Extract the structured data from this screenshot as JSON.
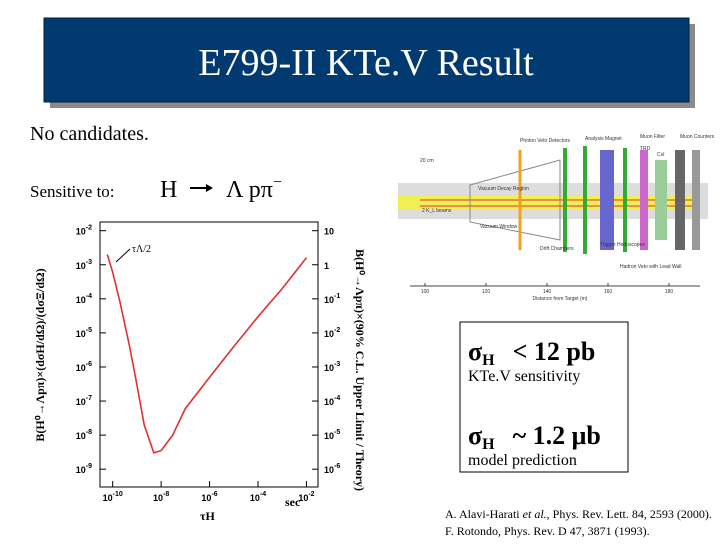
{
  "title": "E799-II KTe.V Result",
  "statement": "No candidates.",
  "sensitive": {
    "label": "Sensitive to:",
    "parent": "H",
    "products": "Λ pπ",
    "charge": "−"
  },
  "results": [
    {
      "symbol": "σ",
      "sub": "H",
      "relation": "< 12 pb",
      "note": "KTe.V sensitivity"
    },
    {
      "symbol": "σ",
      "sub": "H",
      "relation": "~ 1.2 μb",
      "note": "model prediction"
    }
  ],
  "references": [
    {
      "authors": "A. Alavi-Harati ",
      "etal": "et al.",
      "rest": ", Phys. Rev. Lett. 84, 2593 (2000)."
    },
    {
      "authors": "F. Rotondo, Phys. Rev. D 47, 3871 (1993).",
      "etal": "",
      "rest": ""
    }
  ],
  "detector": {
    "labels": [
      "20 cm",
      "Photon Veto Detectors",
      "Analysis Magnet",
      "Muon Filter",
      "Muon Counters",
      "TRD",
      "CsI",
      "Vacuum Decay Region",
      "2 K_L beams",
      "Vacuum Window",
      "Drift Chambers",
      "Trigger Hodoscopes",
      "Hadron Veto with Lead Wall"
    ],
    "xticks": [
      100,
      120,
      140,
      160,
      180
    ],
    "xlabel": "Distance from Target (m)"
  },
  "plot": {
    "type": "line",
    "log": true,
    "xlim": [
      3e-11,
      0.03
    ],
    "ylim": [
      3e-10,
      0.018
    ],
    "y2lim": [
      3e-07,
      18
    ],
    "xticks": [
      {
        "value": 1e-10,
        "label": "10",
        "sup": "-10"
      },
      {
        "value": 1e-08,
        "label": "10",
        "sup": "-8"
      },
      {
        "value": 1e-06,
        "label": "10",
        "sup": "-6"
      },
      {
        "value": 0.0001,
        "label": "10",
        "sup": "-4"
      },
      {
        "value": 0.01,
        "label": "10",
        "sup": "-2"
      }
    ],
    "yticks": [
      {
        "value": 0.01,
        "label": "10",
        "sup": "-2"
      },
      {
        "value": 0.001,
        "label": "10",
        "sup": "-3"
      },
      {
        "value": 0.0001,
        "label": "10",
        "sup": "-4"
      },
      {
        "value": 1e-05,
        "label": "10",
        "sup": "-5"
      },
      {
        "value": 1e-06,
        "label": "10",
        "sup": "-6"
      },
      {
        "value": 1e-07,
        "label": "10",
        "sup": "-7"
      },
      {
        "value": 1e-08,
        "label": "10",
        "sup": "-8"
      },
      {
        "value": 1e-09,
        "label": "10",
        "sup": "-9"
      }
    ],
    "y2ticks": [
      10,
      1,
      {
        "value": 0.1,
        "label": "10",
        "sup": "-1"
      },
      {
        "value": 0.01,
        "label": "10",
        "sup": "-2"
      },
      {
        "value": 0.001,
        "label": "10",
        "sup": "-3"
      },
      {
        "value": 0.0001,
        "label": "10",
        "sup": "-4"
      },
      {
        "value": 1e-05,
        "label": "10",
        "sup": "-5"
      },
      {
        "value": 1e-06,
        "label": "10",
        "sup": "-6"
      }
    ],
    "xlabel": "τH",
    "xunit": "sec",
    "ylabel": "B(H⁰→Λpπ)×(dσH/dΩ)/(dσΞ/dΩ)",
    "y2label": "B(H⁰→Λpπ)×(90% C.L. Upper Limit / Theory)",
    "annotation": "τΛ/2",
    "color": "#e03030",
    "x": [
      6e-11,
      1e-10,
      2e-10,
      5e-10,
      1e-09,
      2e-09,
      5e-09,
      1e-08,
      3e-08,
      1e-07,
      1e-06,
      1e-05,
      0.0001,
      0.001,
      0.01
    ],
    "y": [
      0.002,
      0.0006,
      8e-05,
      4e-06,
      3e-07,
      2e-08,
      3e-09,
      3.5e-09,
      1e-08,
      6e-08,
      5e-07,
      4e-06,
      3e-05,
      0.0002,
      0.0016
    ]
  }
}
